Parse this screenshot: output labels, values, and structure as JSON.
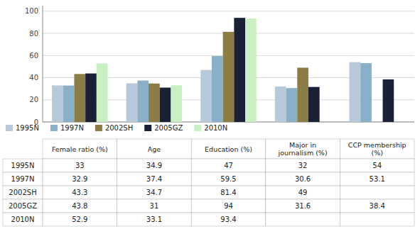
{
  "chart_data": {
    "type": "bar",
    "categories": [
      "Female ratio (%)",
      "Age",
      "Education (%)",
      "Major in\njournalism (%)",
      "CCP membership\n(%)"
    ],
    "series": [
      {
        "name": "1995N",
        "color": "#b8c9d9",
        "values": [
          33,
          34.9,
          47,
          32,
          54
        ]
      },
      {
        "name": "1997N",
        "color": "#8aafc8",
        "values": [
          32.9,
          37.4,
          59.5,
          30.6,
          53.1
        ]
      },
      {
        "name": "2002SH",
        "color": "#8b7d45",
        "values": [
          43.3,
          34.7,
          81.4,
          49,
          null
        ]
      },
      {
        "name": "2005GZ",
        "color": "#1a2035",
        "values": [
          43.8,
          31,
          94,
          31.6,
          38.4
        ]
      },
      {
        "name": "2010N",
        "color": "#c8f0c0",
        "values": [
          52.9,
          33.1,
          93.4,
          null,
          null
        ]
      }
    ],
    "ylim": [
      0,
      105
    ],
    "yticks": [
      0,
      20,
      40,
      60,
      80,
      100
    ],
    "grid": true,
    "legend": "lower left",
    "tick_labels": "y"
  }
}
